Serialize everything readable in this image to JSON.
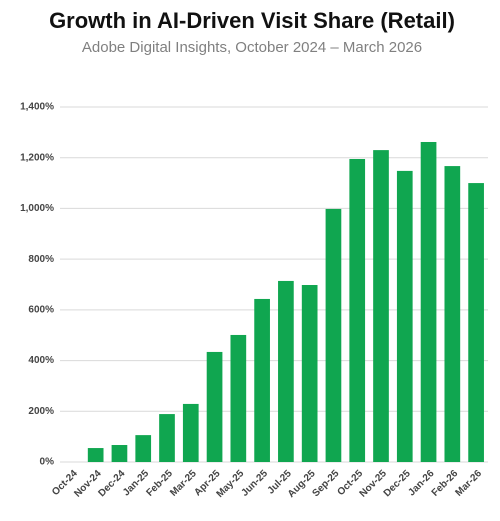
{
  "chart_data": {
    "type": "bar",
    "title": "Growth in AI-Driven Visit Share (Retail)",
    "subtitle": "Adobe Digital Insights, October 2024 – March 2026",
    "categories": [
      "Oct-24",
      "Nov-24",
      "Dec-24",
      "Jan-25",
      "Feb-25",
      "Mar-25",
      "Apr-25",
      "May-25",
      "Jun-25",
      "Jul-25",
      "Aug-25",
      "Sep-25",
      "Oct-25",
      "Nov-25",
      "Dec-25",
      "Jan-26",
      "Feb-26",
      "Mar-26"
    ],
    "values": [
      0,
      55,
      67,
      106,
      189,
      229,
      434,
      501,
      643,
      714,
      698,
      998,
      1195,
      1230,
      1148,
      1262,
      1167,
      1100
    ],
    "color": "#10a650",
    "ylim": [
      0,
      1400
    ],
    "yticks": [
      {
        "value": 0,
        "label": "0%"
      },
      {
        "value": 200,
        "label": "200%"
      },
      {
        "value": 400,
        "label": "400%"
      },
      {
        "value": 600,
        "label": "600%"
      },
      {
        "value": 800,
        "label": "800%"
      },
      {
        "value": 1000,
        "label": "1,000%"
      },
      {
        "value": 1200,
        "label": "1,200%"
      },
      {
        "value": 1400,
        "label": "1,400%"
      }
    ],
    "grid": true
  }
}
